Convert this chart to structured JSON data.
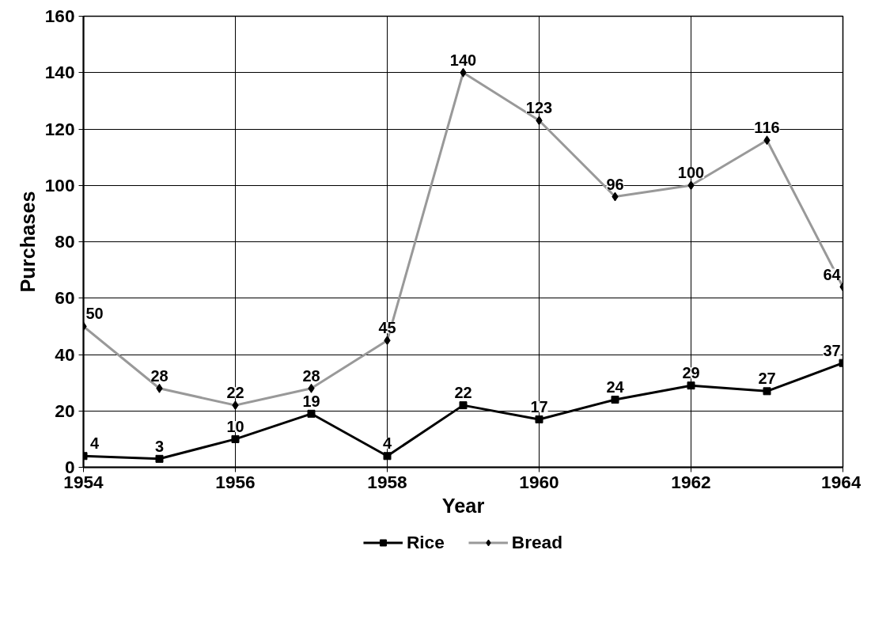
{
  "chart_data": {
    "type": "line",
    "xlabel": "Year",
    "ylabel": "Purchases",
    "x": [
      1954,
      1955,
      1956,
      1957,
      1958,
      1959,
      1960,
      1961,
      1962,
      1963,
      1964
    ],
    "series": [
      {
        "name": "Rice",
        "color": "#000000",
        "marker": "square",
        "values": [
          4,
          3,
          10,
          19,
          4,
          22,
          17,
          24,
          29,
          27,
          37
        ]
      },
      {
        "name": "Bread",
        "color": "#999999",
        "marker": "diamond",
        "values": [
          50,
          28,
          22,
          28,
          45,
          140,
          123,
          96,
          100,
          116,
          64
        ]
      }
    ],
    "xlim": [
      1954,
      1964
    ],
    "xticks": [
      1954,
      1956,
      1958,
      1960,
      1962,
      1964
    ],
    "ylim": [
      0,
      160
    ],
    "yticks": [
      0,
      20,
      40,
      60,
      80,
      100,
      120,
      140,
      160
    ],
    "grid": true,
    "legend": "bottom",
    "data_labels": true,
    "line_style": "solid"
  }
}
